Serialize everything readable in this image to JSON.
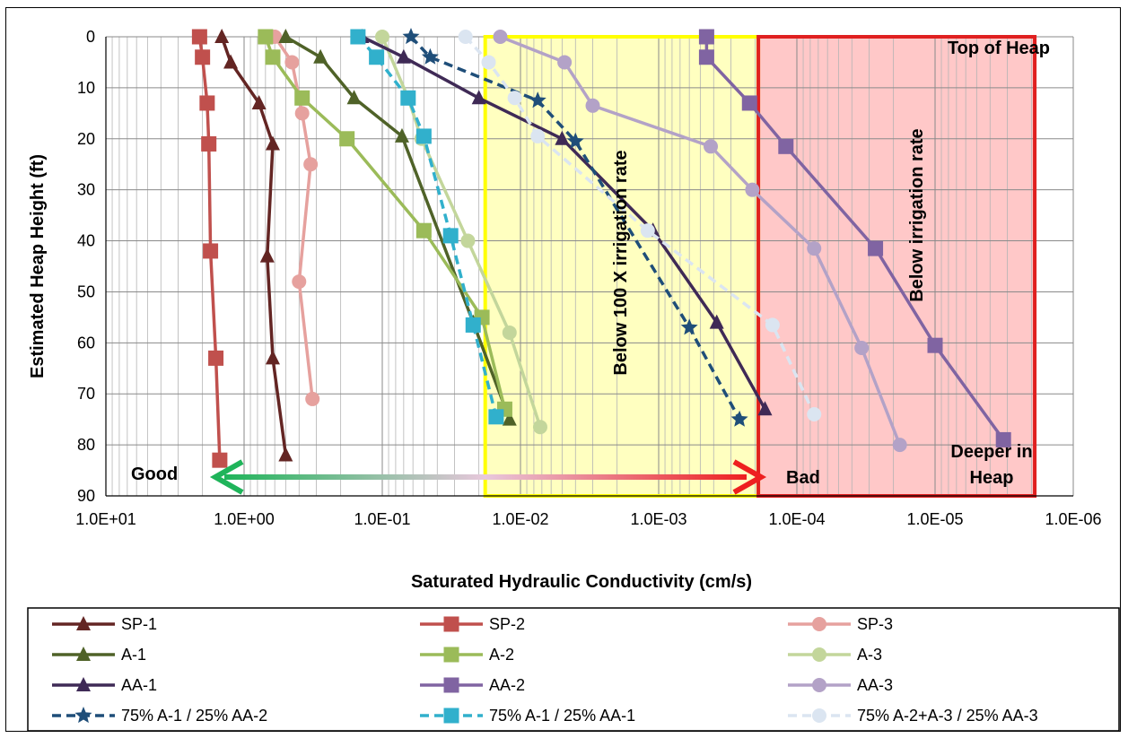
{
  "chart_data": {
    "type": "line",
    "xlabel": "Saturated Hydraulic Conductivity (cm/s)",
    "ylabel": "Estimated Heap Height (ft)",
    "x_scale": "log",
    "x_reversed": true,
    "xlim": [
      10,
      1e-06
    ],
    "ylim": [
      0,
      90
    ],
    "y_inverted": true,
    "x_tick_labels": [
      "1.0E+01",
      "1.0E+00",
      "1.0E-01",
      "1.0E-02",
      "1.0E-03",
      "1.0E-04",
      "1.0E-05",
      "1.0E-06"
    ],
    "y_ticks": [
      0,
      10,
      20,
      30,
      40,
      50,
      60,
      70,
      80,
      90
    ],
    "grid": true,
    "legend_position": "bottom",
    "regions": [
      {
        "label": "Below 100 X irrigation  rate",
        "x_from": 0.018,
        "x_to": 0.00019,
        "fill": "#ffffc0",
        "edge": "#ffff00"
      },
      {
        "label": "Below irrigation  rate",
        "x_from": 0.00019,
        "x_to": 1.9e-06,
        "fill": "#ffc8c8",
        "edge": "#e02020"
      }
    ],
    "annotations": {
      "good": "Good",
      "bad": "Bad",
      "top": "Top of Heap",
      "deeper_1": "Deeper in",
      "deeper_2": "Heap"
    },
    "series": [
      {
        "name": "SP-1",
        "color": "#632523",
        "marker": "triangle",
        "dash": false,
        "points": [
          [
            1.45,
            0
          ],
          [
            1.25,
            5
          ],
          [
            0.78,
            13
          ],
          [
            0.62,
            21
          ],
          [
            0.68,
            43
          ],
          [
            0.62,
            63
          ],
          [
            0.5,
            82
          ]
        ]
      },
      {
        "name": "SP-2",
        "color": "#c0504d",
        "marker": "square",
        "dash": false,
        "points": [
          [
            2.1,
            0
          ],
          [
            2.0,
            4
          ],
          [
            1.85,
            13
          ],
          [
            1.8,
            21
          ],
          [
            1.75,
            42
          ],
          [
            1.6,
            63
          ],
          [
            1.5,
            83
          ]
        ]
      },
      {
        "name": "SP-3",
        "color": "#e6a19e",
        "marker": "circle",
        "dash": false,
        "points": [
          [
            0.6,
            0
          ],
          [
            0.45,
            5
          ],
          [
            0.38,
            15
          ],
          [
            0.33,
            25
          ],
          [
            0.4,
            48
          ],
          [
            0.32,
            71
          ]
        ]
      },
      {
        "name": "A-1",
        "color": "#4f6228",
        "marker": "triangle",
        "dash": false,
        "points": [
          [
            0.5,
            0
          ],
          [
            0.28,
            4
          ],
          [
            0.16,
            12
          ],
          [
            0.072,
            19.5
          ],
          [
            0.022,
            56
          ],
          [
            0.012,
            75
          ]
        ]
      },
      {
        "name": "A-2",
        "color": "#9bbb59",
        "marker": "square",
        "dash": false,
        "points": [
          [
            0.7,
            0
          ],
          [
            0.62,
            4
          ],
          [
            0.38,
            12
          ],
          [
            0.18,
            20
          ],
          [
            0.05,
            38
          ],
          [
            0.019,
            55
          ],
          [
            0.013,
            73
          ]
        ]
      },
      {
        "name": "A-3",
        "color": "#c3d69b",
        "marker": "circle",
        "dash": false,
        "points": [
          [
            0.1,
            0
          ],
          [
            0.065,
            12
          ],
          [
            0.052,
            20
          ],
          [
            0.024,
            40
          ],
          [
            0.012,
            58
          ],
          [
            0.0072,
            76.5
          ]
        ]
      },
      {
        "name": "AA-1",
        "color": "#3f2a56",
        "marker": "triangle",
        "dash": false,
        "points": [
          [
            0.14,
            0
          ],
          [
            0.07,
            4
          ],
          [
            0.02,
            12
          ],
          [
            0.005,
            20
          ],
          [
            0.0011,
            38
          ],
          [
            0.00038,
            56
          ],
          [
            0.00017,
            73
          ]
        ]
      },
      {
        "name": "AA-2",
        "color": "#8064a2",
        "marker": "square",
        "dash": false,
        "points": [
          [
            0.00045,
            0
          ],
          [
            0.00045,
            4
          ],
          [
            0.00022,
            13
          ],
          [
            0.00012,
            21.5
          ],
          [
            2.7e-05,
            41.5
          ],
          [
            1e-05,
            60.5
          ],
          [
            3.2e-06,
            79
          ]
        ]
      },
      {
        "name": "AA-3",
        "color": "#b3a2c7",
        "marker": "circle",
        "dash": false,
        "points": [
          [
            0.014,
            0
          ],
          [
            0.0048,
            5
          ],
          [
            0.003,
            13.5
          ],
          [
            0.00042,
            21.5
          ],
          [
            0.00021,
            30
          ],
          [
            7.5e-05,
            41.5
          ],
          [
            3.4e-05,
            61
          ],
          [
            1.8e-05,
            80
          ]
        ]
      },
      {
        "name": "75% A-1 / 25% AA-2",
        "color": "#1f4e79",
        "marker": "star",
        "dash": true,
        "points": [
          [
            0.062,
            0
          ],
          [
            0.045,
            4
          ],
          [
            0.0075,
            12.5
          ],
          [
            0.004,
            20.5
          ],
          [
            0.0006,
            57
          ],
          [
            0.00026,
            75
          ]
        ]
      },
      {
        "name": "75% A-1 / 25% AA-1",
        "color": "#31b0cc",
        "marker": "square",
        "dash": true,
        "points": [
          [
            0.15,
            0
          ],
          [
            0.11,
            4
          ],
          [
            0.065,
            12
          ],
          [
            0.05,
            19.5
          ],
          [
            0.032,
            39
          ],
          [
            0.022,
            56.5
          ],
          [
            0.015,
            74.5
          ]
        ]
      },
      {
        "name": "75% A-2+A-3 / 25% AA-3",
        "color": "#dbe5f1",
        "marker": "circle",
        "dash": true,
        "points": [
          [
            0.025,
            0
          ],
          [
            0.017,
            5
          ],
          [
            0.011,
            12
          ],
          [
            0.0075,
            19.5
          ],
          [
            0.0012,
            38
          ],
          [
            0.00015,
            56.5
          ],
          [
            7.5e-05,
            74
          ]
        ]
      }
    ]
  }
}
